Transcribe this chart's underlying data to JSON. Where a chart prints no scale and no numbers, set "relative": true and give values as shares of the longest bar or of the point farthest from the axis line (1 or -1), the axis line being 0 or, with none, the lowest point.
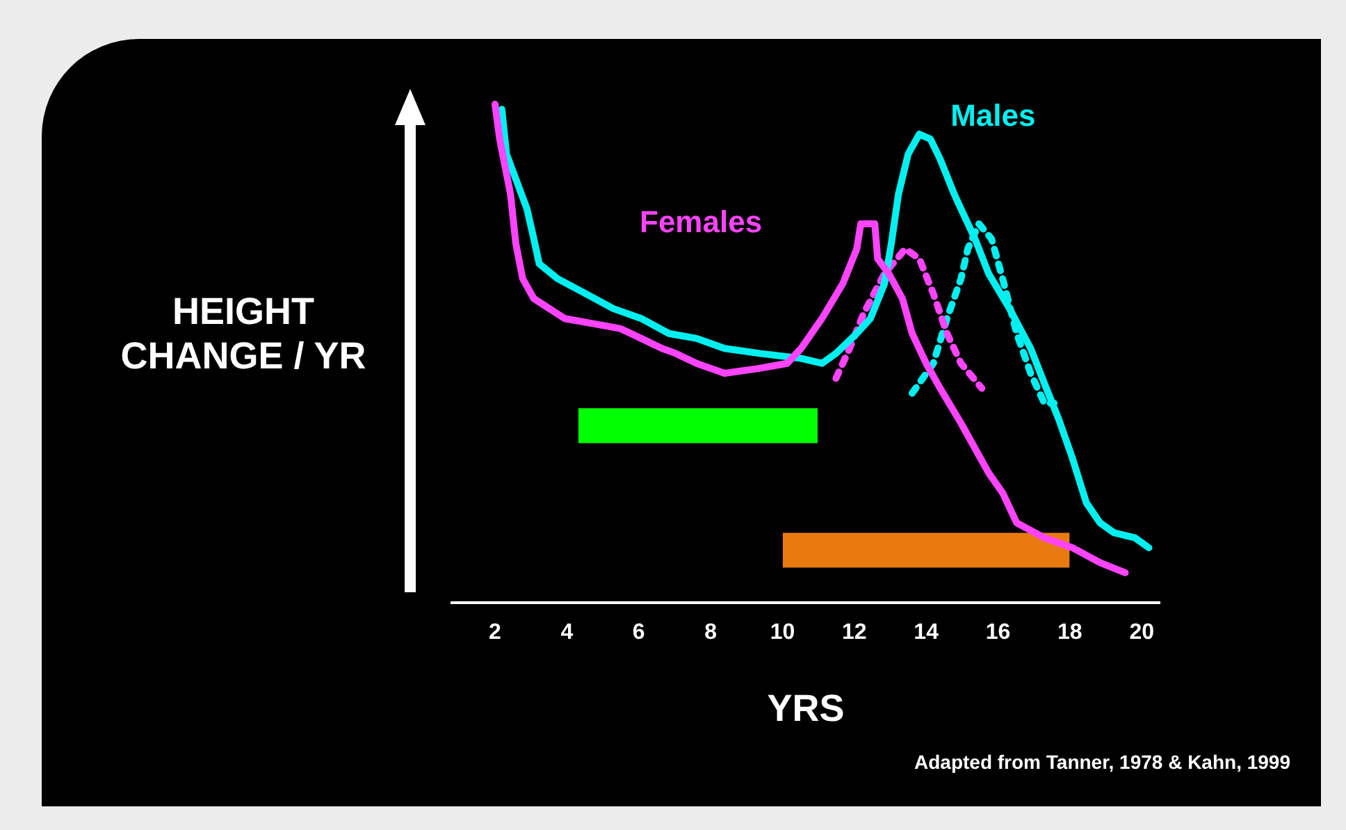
{
  "chart_data": {
    "type": "line",
    "relative": true,
    "xlabel": "YRS",
    "ylabel": "HEIGHT CHANGE / YR",
    "xlim": [
      0.8,
      20.5
    ],
    "xticks": [
      2,
      4,
      6,
      8,
      10,
      12,
      14,
      16,
      18,
      20
    ],
    "grid": false,
    "legend": false,
    "marker": "none",
    "annotations": [
      "Adapted from Tanner, 1978 & Kahn, 1999"
    ],
    "bands": [
      {
        "axis": "x",
        "from": 4.32,
        "to": 10.98,
        "color": "#00ff00"
      },
      {
        "axis": "x",
        "from": 10.01,
        "to": 17.99,
        "color": "#e87a10"
      }
    ],
    "series": [
      {
        "name": "Females",
        "color": "#ff44ff",
        "line_style": "solid",
        "x": [
          2.0,
          2.13,
          2.43,
          2.58,
          2.77,
          3.08,
          3.94,
          4.71,
          5.48,
          6.07,
          6.65,
          7.03,
          7.61,
          8.39,
          9.36,
          10.13,
          10.52,
          11.1,
          11.68,
          12.07,
          12.18,
          12.57,
          12.65,
          12.96,
          13.34,
          13.61,
          14.0,
          14.39,
          14.97,
          15.74,
          16.13,
          16.52,
          17.29,
          18.07,
          18.84,
          19.54
        ],
        "values": [
          1.0,
          0.93,
          0.82,
          0.72,
          0.65,
          0.61,
          0.57,
          0.56,
          0.55,
          0.53,
          0.51,
          0.5,
          0.48,
          0.46,
          0.47,
          0.48,
          0.51,
          0.57,
          0.64,
          0.71,
          0.76,
          0.76,
          0.69,
          0.66,
          0.61,
          0.54,
          0.48,
          0.43,
          0.36,
          0.26,
          0.22,
          0.16,
          0.13,
          0.11,
          0.08,
          0.06
        ]
      },
      {
        "name": "Males",
        "color": "#00f0f0",
        "line_style": "solid",
        "x": [
          2.19,
          2.32,
          2.89,
          3.08,
          3.23,
          3.74,
          4.52,
          5.29,
          6.07,
          6.84,
          7.61,
          8.39,
          9.36,
          10.52,
          11.1,
          11.49,
          12.07,
          12.45,
          12.84,
          13.03,
          13.23,
          13.5,
          13.81,
          14.12,
          14.39,
          14.78,
          14.97,
          15.36,
          15.74,
          16.32,
          16.91,
          17.29,
          17.68,
          18.07,
          18.46,
          18.84,
          19.23,
          19.81,
          20.2
        ],
        "values": [
          0.99,
          0.9,
          0.79,
          0.73,
          0.68,
          0.65,
          0.62,
          0.59,
          0.57,
          0.54,
          0.53,
          0.51,
          0.5,
          0.49,
          0.48,
          0.5,
          0.54,
          0.57,
          0.64,
          0.72,
          0.82,
          0.9,
          0.94,
          0.93,
          0.89,
          0.82,
          0.79,
          0.73,
          0.66,
          0.59,
          0.51,
          0.44,
          0.37,
          0.29,
          0.2,
          0.16,
          0.14,
          0.13,
          0.11
        ]
      },
      {
        "color": "#ff44ff",
        "line_style": "dotted",
        "x": [
          11.49,
          11.87,
          12.26,
          12.84,
          13.42,
          13.81,
          14.2,
          14.58,
          14.97,
          15.55
        ],
        "values": [
          0.45,
          0.51,
          0.58,
          0.66,
          0.71,
          0.69,
          0.62,
          0.54,
          0.48,
          0.43
        ]
      },
      {
        "color": "#00f0f0",
        "line_style": "dotted",
        "x": [
          13.61,
          14.2,
          14.58,
          14.97,
          15.16,
          15.47,
          15.82,
          16.13,
          16.52,
          16.91,
          17.29,
          17.56
        ],
        "values": [
          0.42,
          0.48,
          0.57,
          0.65,
          0.71,
          0.76,
          0.73,
          0.65,
          0.54,
          0.46,
          0.4,
          0.4
        ]
      }
    ]
  }
}
